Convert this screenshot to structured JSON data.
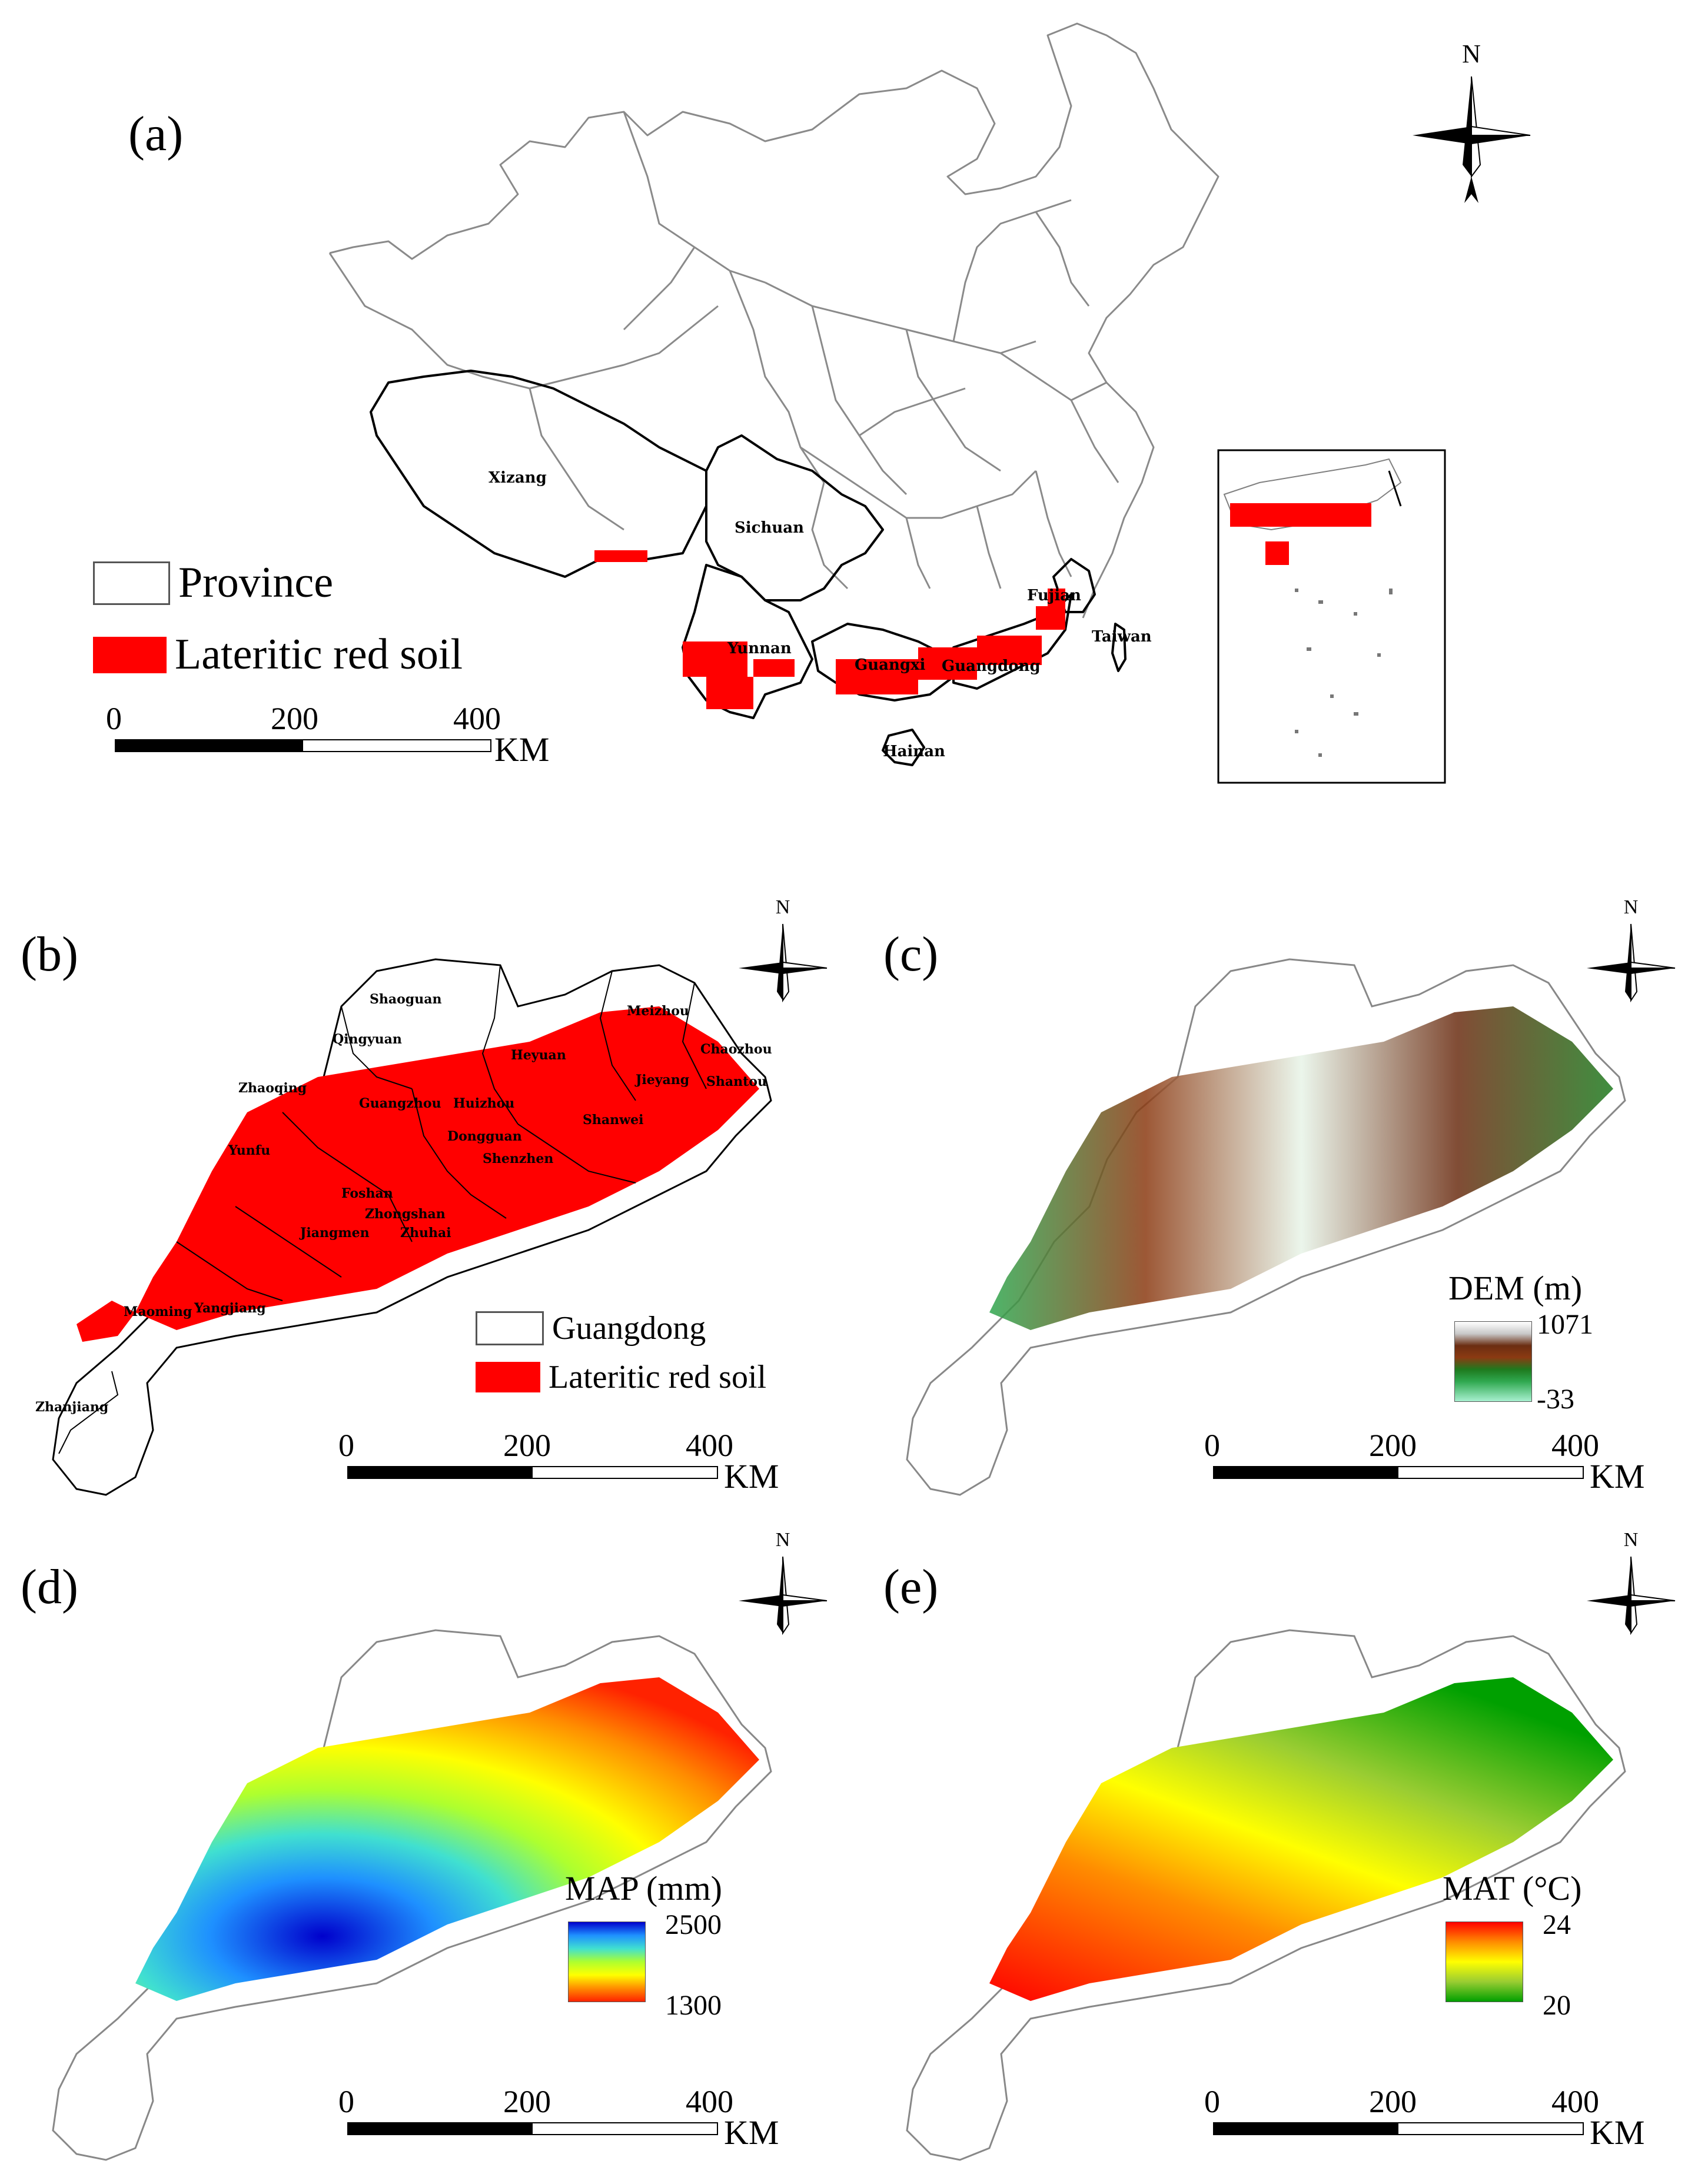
{
  "panels": {
    "a": {
      "label": "(a)",
      "legend": {
        "province": "Province",
        "soil": "Lateritic red soil"
      },
      "scale": {
        "ticks": [
          "0",
          "200",
          "400"
        ],
        "unit": "KM"
      },
      "north": "N",
      "places": [
        "Xizang",
        "Sichuan",
        "Yunnan",
        "Guangxi",
        "Guangdong",
        "Fujian",
        "Taiwan",
        "Hainan"
      ]
    },
    "b": {
      "label": "(b)",
      "legend": {
        "region": "Guangdong",
        "soil": "Lateritic red soil"
      },
      "scale": {
        "ticks": [
          "0",
          "200",
          "400"
        ],
        "unit": "KM"
      },
      "north": "N",
      "places": [
        "Shaoguan",
        "Qingyuan",
        "Meizhou",
        "Heyuan",
        "Chaozhou",
        "Shantou",
        "Jieyang",
        "Shanwei",
        "Zhaoqing",
        "Guangzhou",
        "Huizhou",
        "Yunfu",
        "Foshan",
        "Dongguan",
        "Shenzhen",
        "Zhongshan",
        "Jiangmen",
        "Zhuhai",
        "Maoming",
        "Yangjiang",
        "Zhanjiang"
      ]
    },
    "c": {
      "label": "(c)",
      "north": "N",
      "ramp": {
        "title": "DEM (m)",
        "max": "1071",
        "min": "-33"
      },
      "scale": {
        "ticks": [
          "0",
          "200",
          "400"
        ],
        "unit": "KM"
      }
    },
    "d": {
      "label": "(d)",
      "north": "N",
      "ramp": {
        "title": "MAP (mm)",
        "max": "2500",
        "min": "1300"
      },
      "scale": {
        "ticks": [
          "0",
          "200",
          "400"
        ],
        "unit": "KM"
      }
    },
    "e": {
      "label": "(e)",
      "north": "N",
      "ramp": {
        "title": "MAT (°C)",
        "max": "24",
        "min": "20"
      },
      "scale": {
        "ticks": [
          "0",
          "200",
          "400"
        ],
        "unit": "KM"
      }
    }
  },
  "colors": {
    "soil_red": "#ff0000",
    "boundary": "#808080",
    "dem_ramp": [
      "#ffffff",
      "#c8c8c8",
      "#6b2d12",
      "#8b3a12",
      "#1e7a1e",
      "#2fa84f",
      "#a8f0d0"
    ],
    "map_ramp": [
      "#0000cc",
      "#1e90ff",
      "#40e0d0",
      "#adff2f",
      "#ffff00",
      "#ff8c00",
      "#ff2200"
    ],
    "mat_ramp": [
      "#ff0000",
      "#ff8c00",
      "#ffff00",
      "#9acd32",
      "#00a000"
    ]
  }
}
